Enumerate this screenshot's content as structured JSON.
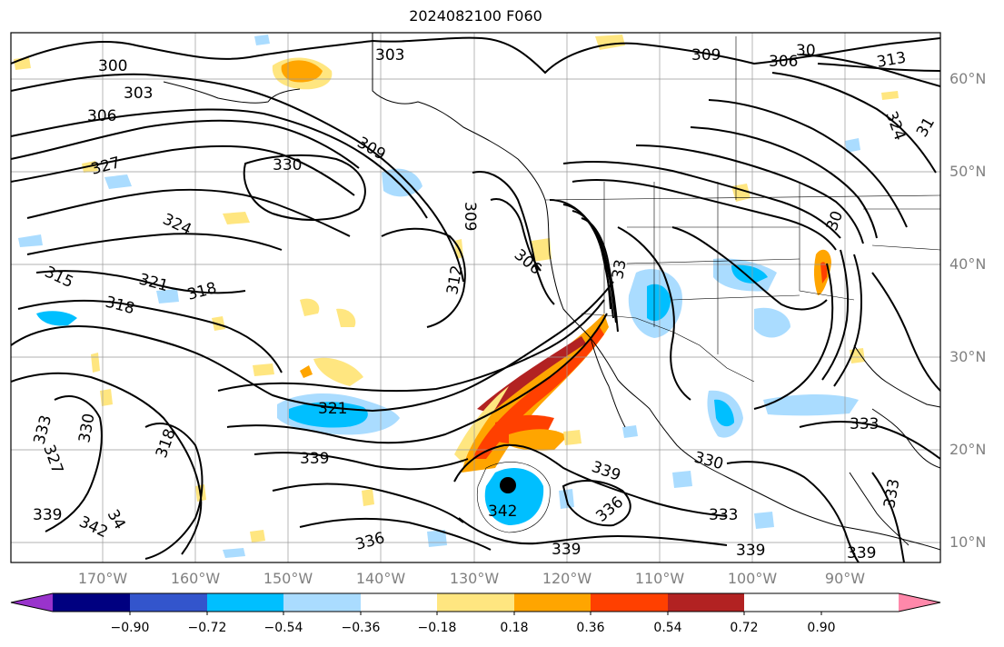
{
  "title": "2024082100 F060",
  "lat_labels": [
    "60°N",
    "50°N",
    "40°N",
    "30°N",
    "20°N",
    "10°N"
  ],
  "lon_labels": [
    "170°W",
    "160°W",
    "150°W",
    "140°W",
    "130°W",
    "120°W",
    "110°W",
    "100°W",
    "90°W"
  ],
  "colorbar": {
    "ticks": [
      "−0.90",
      "−0.72",
      "−0.54",
      "−0.36",
      "−0.18",
      "0.18",
      "0.36",
      "0.54",
      "0.72",
      "0.90"
    ],
    "colors": [
      "#9933cc",
      "#000080",
      "#3355cc",
      "#00bfff",
      "#aadcff",
      "#ffffff",
      "#ffe680",
      "#ffa500",
      "#ff4000",
      "#b22222",
      "#ff88aa"
    ]
  },
  "contour_labels": [
    "300",
    "303",
    "303",
    "306",
    "306",
    "309",
    "309",
    "30",
    "313",
    "324",
    "31",
    "327",
    "330",
    "324",
    "315",
    "321",
    "318",
    "318",
    "312",
    "309",
    "306",
    "30",
    "33",
    "333",
    "330",
    "327",
    "318",
    "321",
    "339",
    "339",
    "34",
    "342",
    "342",
    "339",
    "336",
    "333",
    "336",
    "339",
    "339",
    "330",
    "333",
    "333",
    "339"
  ],
  "marker": "storm-center"
}
